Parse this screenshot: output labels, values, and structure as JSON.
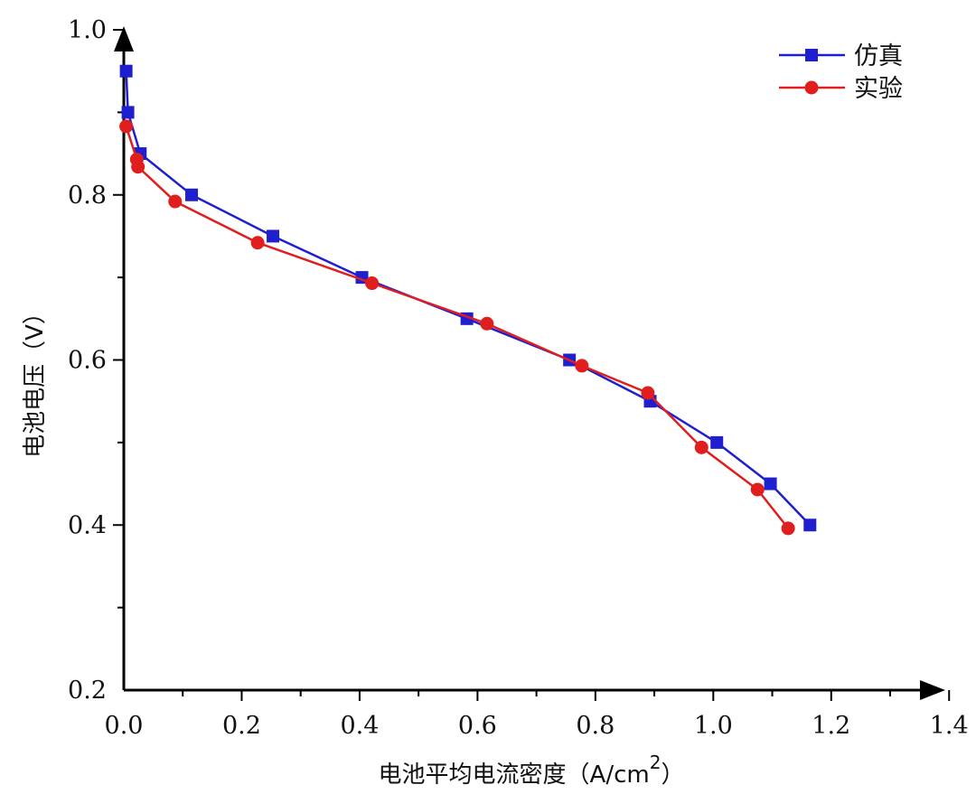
{
  "chart_data": {
    "type": "line",
    "xlabel": "电池平均电流密度（A/cm",
    "xlabel_sup": "2",
    "xlabel_close": "）",
    "ylabel": "电池电压（V）",
    "xlim": [
      0.0,
      1.4
    ],
    "ylim": [
      0.2,
      1.0
    ],
    "xticks": [
      0.0,
      0.2,
      0.4,
      0.6,
      0.8,
      1.0,
      1.2,
      1.4
    ],
    "yticks": [
      0.2,
      0.4,
      0.6,
      0.8,
      1.0
    ],
    "xtick_labels": [
      "0.0",
      "0.2",
      "0.4",
      "0.6",
      "0.8",
      "1.0",
      "1.2",
      "1.4"
    ],
    "ytick_labels": [
      "0.2",
      "0.4",
      "0.6",
      "0.8",
      "1.0"
    ],
    "legend_position": "top-right",
    "grid": false,
    "series": [
      {
        "name": "仿真",
        "color": "#1f1fd0",
        "marker": "square",
        "x": [
          0.004,
          0.007,
          0.028,
          0.115,
          0.253,
          0.404,
          0.582,
          0.756,
          0.893,
          1.006,
          1.097,
          1.164
        ],
        "y": [
          0.95,
          0.9,
          0.85,
          0.8,
          0.75,
          0.7,
          0.65,
          0.6,
          0.55,
          0.5,
          0.45,
          0.4
        ]
      },
      {
        "name": "实验",
        "color": "#e01e1e",
        "marker": "circle",
        "x": [
          0.004,
          0.022,
          0.024,
          0.087,
          0.227,
          0.421,
          0.616,
          0.777,
          0.889,
          0.98,
          1.075,
          1.127
        ],
        "y": [
          0.883,
          0.843,
          0.834,
          0.792,
          0.742,
          0.693,
          0.644,
          0.593,
          0.56,
          0.494,
          0.443,
          0.396
        ]
      }
    ]
  }
}
